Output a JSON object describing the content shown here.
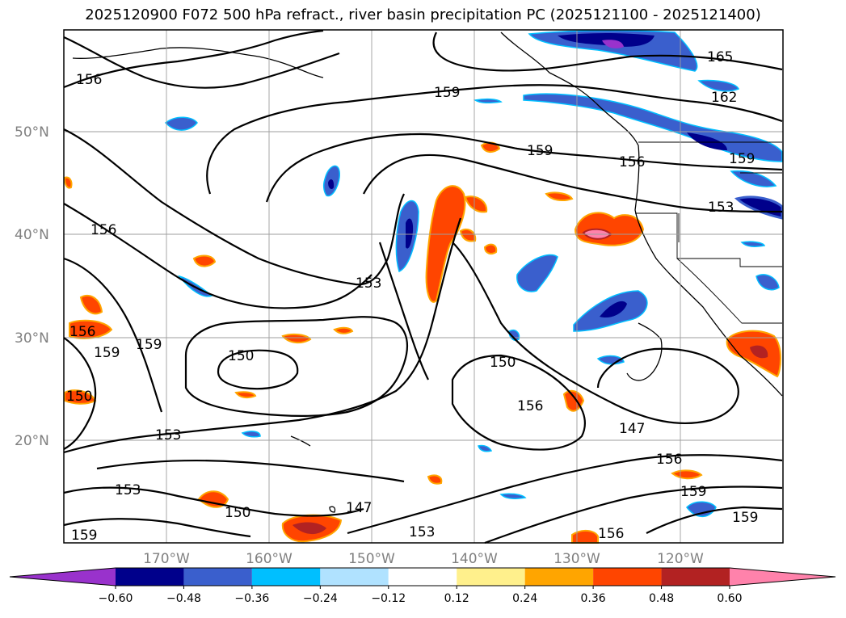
{
  "title": "2025120900 F072 500 hPa refract., river basin precipitation PC (2025121100 - 2025121400)",
  "map": {
    "lat_ticks": [
      "50°N",
      "40°N",
      "30°N",
      "20°N"
    ],
    "lon_ticks": [
      "170°W",
      "160°W",
      "150°W",
      "140°W",
      "130°W",
      "120°W"
    ],
    "contour_labels": [
      "165",
      "162",
      "159",
      "159",
      "159",
      "156",
      "156",
      "156",
      "153",
      "153",
      "153",
      "150",
      "150",
      "150",
      "147",
      "147",
      "156",
      "156",
      "159",
      "159",
      "156",
      "153",
      "150",
      "153",
      "159",
      "156",
      "159",
      "159"
    ]
  },
  "colorbar": {
    "tick_labels": [
      "−0.60",
      "−0.48",
      "−0.36",
      "−0.24",
      "−0.12",
      "0.12",
      "0.24",
      "0.36",
      "0.48",
      "0.60"
    ],
    "colors": [
      "#9932cc",
      "#00008b",
      "#3a5fcd",
      "#00bfff",
      "#b0e2ff",
      "#ffffff",
      "#fff08c",
      "#ffa500",
      "#ff4500",
      "#b22222",
      "#ff82ab"
    ]
  }
}
